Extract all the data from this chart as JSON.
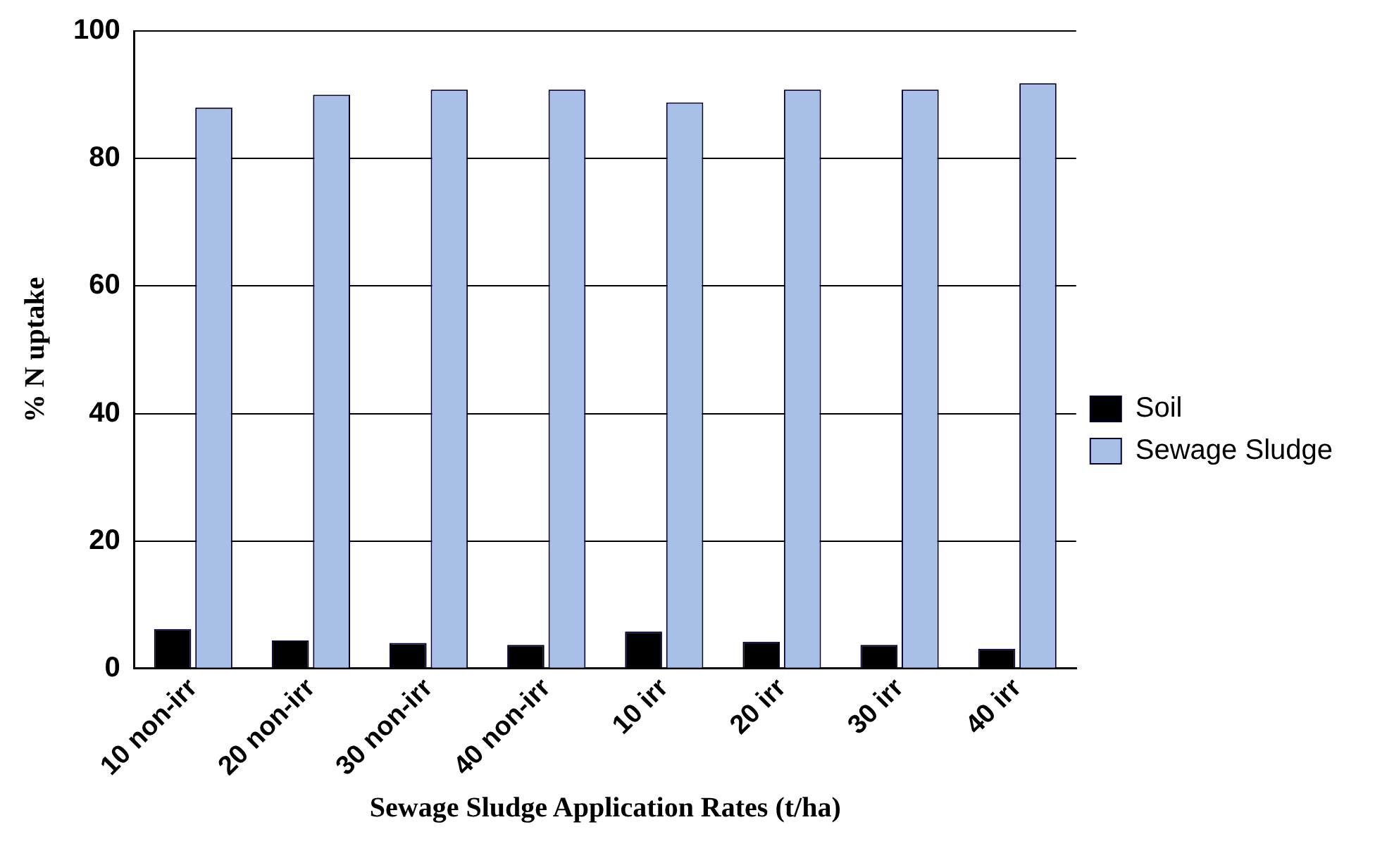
{
  "chart_data": {
    "type": "bar",
    "xlabel": "Sewage Sludge Application Rates (t/ha)",
    "ylabel": "% N uptake",
    "categories": [
      "10 non-irr",
      "20 non-irr",
      "30 non-irr",
      "40 non-irr",
      "10 irr",
      "20 irr",
      "30 irr",
      "40 irr"
    ],
    "series": [
      {
        "name": "Soil",
        "color": "#000000",
        "values": [
          6.2,
          4.4,
          4.0,
          3.7,
          5.8,
          4.2,
          3.7,
          3.1
        ]
      },
      {
        "name": "Sewage Sludge",
        "color": "#a8bfe8",
        "values": [
          88.0,
          90.0,
          90.8,
          90.8,
          88.8,
          90.8,
          90.8,
          91.8
        ]
      }
    ],
    "ylim": [
      0,
      100
    ],
    "yticks": [
      0,
      20,
      40,
      60,
      80,
      100
    ],
    "grid": "y",
    "legend": "right"
  }
}
